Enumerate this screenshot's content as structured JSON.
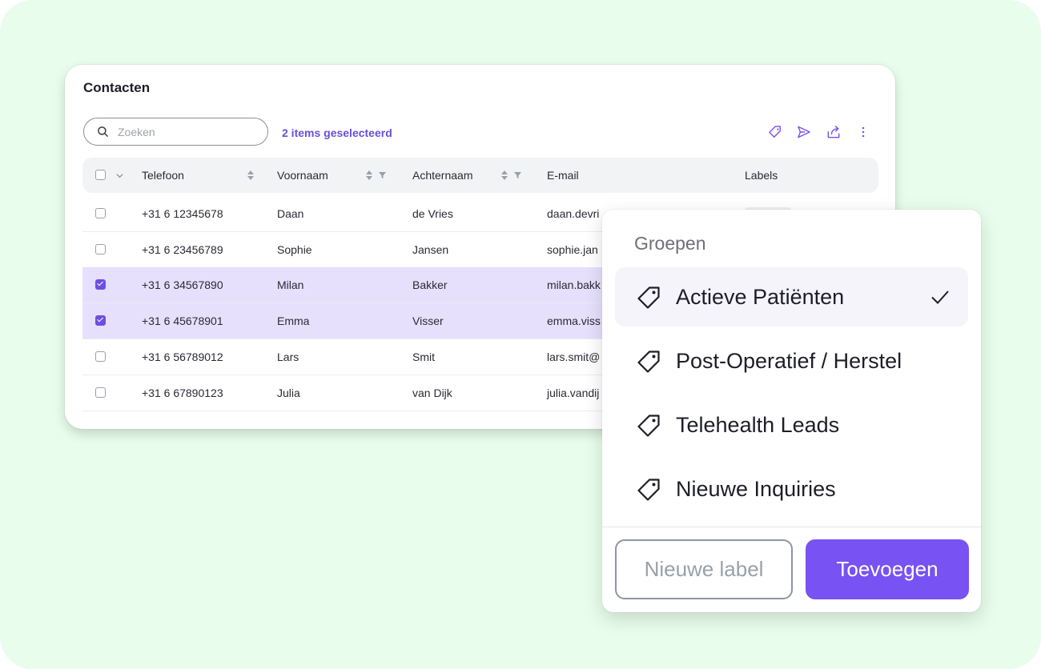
{
  "card": {
    "title": "Contacten",
    "search_placeholder": "Zoeken",
    "selected_count": "2 items geselecteerd",
    "toolbar": [
      "tag-icon",
      "send-icon",
      "export-icon",
      "more-vertical-icon"
    ]
  },
  "table": {
    "columns": [
      "Telefoon",
      "Voornaam",
      "Achternaam",
      "E-mail",
      "Labels"
    ],
    "rows": [
      {
        "phone": "+31 6 12345678",
        "first": "Daan",
        "last": "de Vries",
        "email": "daan.devri",
        "selected": false
      },
      {
        "phone": "+31 6 23456789",
        "first": "Sophie",
        "last": "Jansen",
        "email": "sophie.jan",
        "selected": false
      },
      {
        "phone": "+31 6 34567890",
        "first": "Milan",
        "last": "Bakker",
        "email": "milan.bakk",
        "selected": true
      },
      {
        "phone": "+31 6 45678901",
        "first": "Emma",
        "last": "Visser",
        "email": "emma.viss",
        "selected": true
      },
      {
        "phone": "+31 6 56789012",
        "first": "Lars",
        "last": "Smit",
        "email": "lars.smit@",
        "selected": false
      },
      {
        "phone": "+31 6 67890123",
        "first": "Julia",
        "last": "van Dijk",
        "email": "julia.vandij",
        "selected": false
      }
    ]
  },
  "popup": {
    "heading": "Groepen",
    "options": [
      {
        "label": "Actieve Patiënten",
        "checked": true
      },
      {
        "label": "Post-Operatief / Herstel",
        "checked": false
      },
      {
        "label": "Telehealth Leads",
        "checked": false
      },
      {
        "label": "Nieuwe Inquiries",
        "checked": false
      }
    ],
    "new_label_button": "Nieuwe label",
    "add_button": "Toevoegen"
  },
  "colors": {
    "accent": "#7852f2",
    "selected_row": "#e6e0fd",
    "background": "#e8fdeb"
  }
}
